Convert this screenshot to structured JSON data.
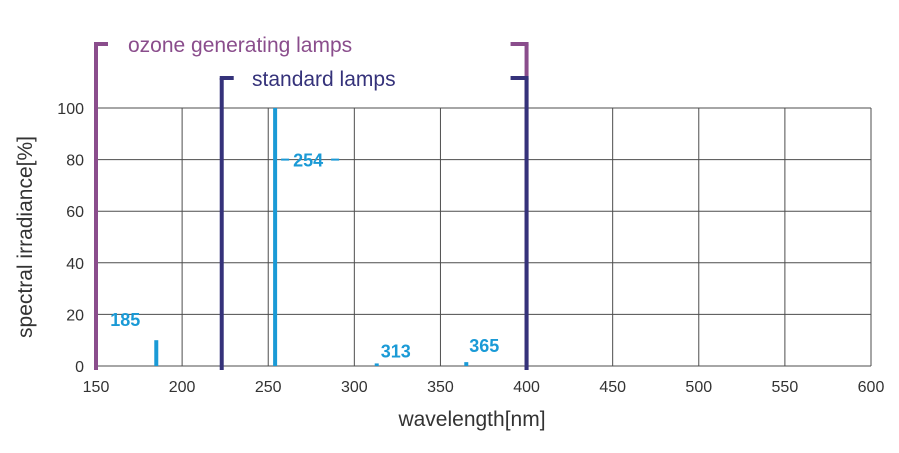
{
  "chart_data": {
    "type": "bar",
    "xlabel": "wavelength[nm]",
    "ylabel": "spectral irradiance[%]",
    "xlim": [
      150,
      600
    ],
    "ylim": [
      0,
      100
    ],
    "x_ticks": [
      "150",
      "200",
      "250",
      "300",
      "350",
      "400",
      "450",
      "500",
      "550",
      "600"
    ],
    "y_ticks": [
      "0",
      "20",
      "40",
      "60",
      "80",
      "100"
    ],
    "grid": true,
    "bar_color": "#1a9ad6",
    "series": [
      {
        "points": [
          {
            "x": 185,
            "y": 10,
            "label": "185"
          },
          {
            "x": 254,
            "y": 100,
            "label": "254"
          },
          {
            "x": 313,
            "y": 1,
            "label": "313"
          },
          {
            "x": 365,
            "y": 1.5,
            "label": "365"
          }
        ]
      }
    ],
    "ranges": [
      {
        "label": "ozone generating lamps",
        "from": 150,
        "to": 400,
        "color": "#8a4d8c"
      },
      {
        "label": "standard lamps",
        "from": 223,
        "to": 400,
        "color": "#35327a"
      }
    ]
  }
}
